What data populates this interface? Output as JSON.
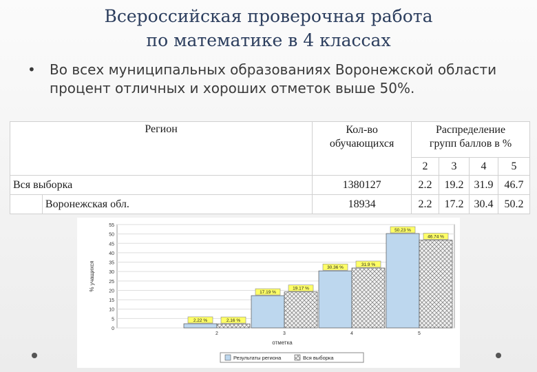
{
  "slide": {
    "title_line1": "Всероссийская проверочная работа",
    "title_line2": "по математике в 4 классах",
    "bullet": "Во всех муниципальных образованиях Воронежской области процент отличных и хороших отметок выше 50%."
  },
  "table": {
    "header_region": "Регион",
    "header_count_l1": "Кол-во",
    "header_count_l2": "обучающихся",
    "header_dist_l1": "Распределение",
    "header_dist_l2": "групп баллов в %",
    "grades": [
      "2",
      "3",
      "4",
      "5"
    ],
    "rows": [
      {
        "region": "Вся выборка",
        "count": "1380127",
        "values": [
          "2.2",
          "19.2",
          "31.9",
          "46.7"
        ]
      },
      {
        "region": "Воронежская обл.",
        "count": "18934",
        "values": [
          "2.2",
          "17.2",
          "30.4",
          "50.2"
        ]
      }
    ]
  },
  "chart_data": {
    "type": "bar",
    "categories": [
      "2",
      "3",
      "4",
      "5"
    ],
    "series": [
      {
        "name": "Результаты региона",
        "values": [
          2.22,
          17.19,
          30.36,
          50.23
        ],
        "labels": [
          "2.22 %",
          "17.19 %",
          "30.36 %",
          "50.23 %"
        ],
        "color": "#bdd7ee"
      },
      {
        "name": "Вся выборка",
        "values": [
          2.16,
          19.17,
          31.9,
          46.74
        ],
        "labels": [
          "2.16 %",
          "19.17 %",
          "31.9 %",
          "46.74 %"
        ],
        "color": "#e6e6e6",
        "pattern": "crosshatch"
      }
    ],
    "xlabel": "отметка",
    "ylabel": "% учащихся",
    "ylim": [
      0,
      55
    ],
    "yticks": [
      0,
      5,
      10,
      15,
      20,
      25,
      30,
      35,
      40,
      45,
      50,
      55
    ],
    "grid": true,
    "legend": "bottom"
  }
}
